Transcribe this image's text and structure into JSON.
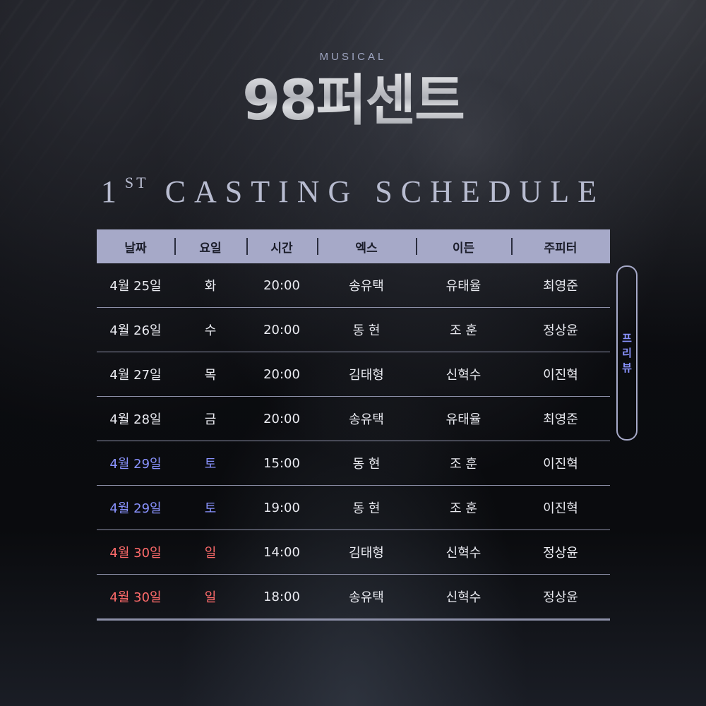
{
  "header": {
    "label": "MUSICAL",
    "title": "98퍼센트",
    "subtitle_main": "1",
    "subtitle_sup": "ST",
    "subtitle_rest": " CASTING SCHEDULE"
  },
  "table": {
    "columns": [
      "날짜",
      "요일",
      "시간",
      "엑스",
      "이든",
      "주피터"
    ],
    "rows": [
      {
        "date": "4월 25일",
        "day": "화",
        "time": "20:00",
        "x": "송유택",
        "eden": "유태율",
        "jupiter": "최영준",
        "tone": "normal"
      },
      {
        "date": "4월 26일",
        "day": "수",
        "time": "20:00",
        "x": "동 현",
        "eden": "조 훈",
        "jupiter": "정상윤",
        "tone": "normal"
      },
      {
        "date": "4월 27일",
        "day": "목",
        "time": "20:00",
        "x": "김태형",
        "eden": "신혁수",
        "jupiter": "이진혁",
        "tone": "normal"
      },
      {
        "date": "4월 28일",
        "day": "금",
        "time": "20:00",
        "x": "송유택",
        "eden": "유태율",
        "jupiter": "최영준",
        "tone": "normal"
      },
      {
        "date": "4월 29일",
        "day": "토",
        "time": "15:00",
        "x": "동 현",
        "eden": "조 훈",
        "jupiter": "이진혁",
        "tone": "blue"
      },
      {
        "date": "4월 29일",
        "day": "토",
        "time": "19:00",
        "x": "동 현",
        "eden": "조 훈",
        "jupiter": "이진혁",
        "tone": "blue"
      },
      {
        "date": "4월 30일",
        "day": "일",
        "time": "14:00",
        "x": "김태형",
        "eden": "신혁수",
        "jupiter": "정상윤",
        "tone": "red"
      },
      {
        "date": "4월 30일",
        "day": "일",
        "time": "18:00",
        "x": "송유택",
        "eden": "신혁수",
        "jupiter": "정상윤",
        "tone": "red"
      }
    ]
  },
  "preview_label": [
    "프",
    "리",
    "뷰"
  ],
  "colors": {
    "header_bg": "#a6a9c8",
    "saturday": "#8a93ff",
    "sunday": "#ff6b6b",
    "text": "#e9eaf0"
  }
}
